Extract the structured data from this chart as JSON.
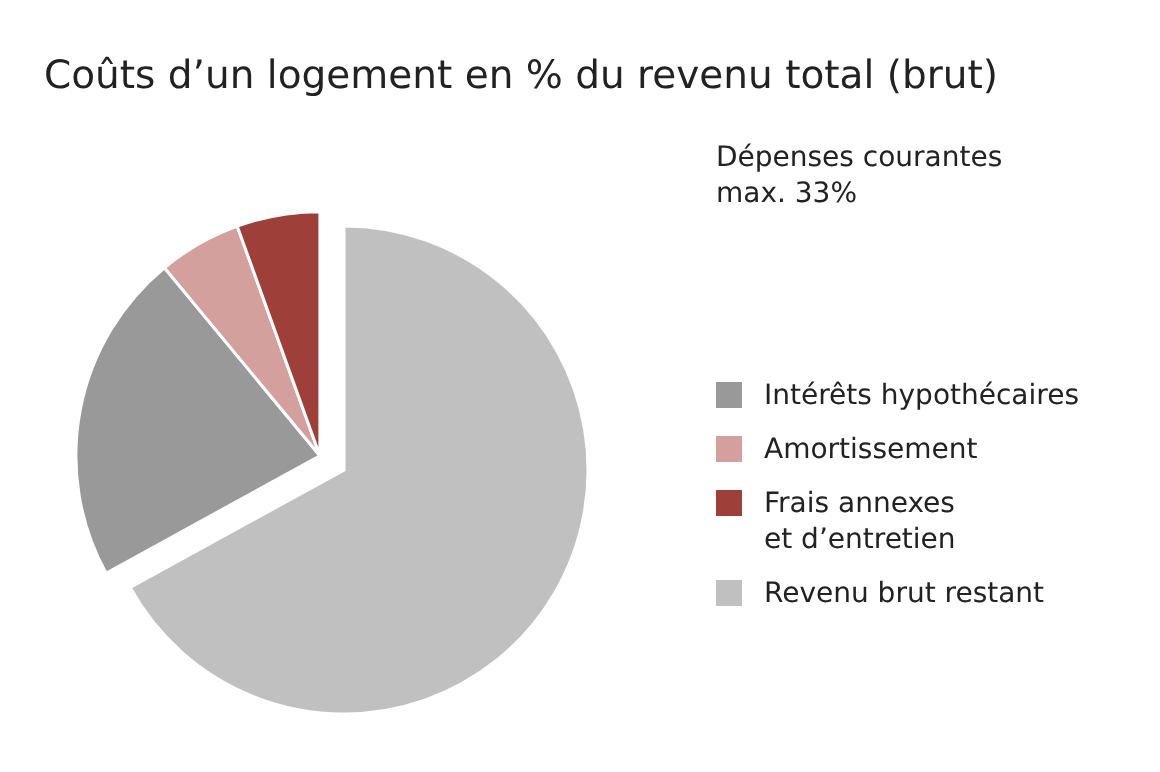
{
  "chart_data": {
    "type": "pie",
    "title": "Coûts d’un logement en % du revenu total (brut)",
    "legend_title": "Dépenses courantes\nmax. 33%",
    "categories": [
      "Intérêts hypothécaires",
      "Amortissement",
      "Frais annexes\net d’entretien",
      "Revenu brut restant"
    ],
    "values": [
      22,
      5.5,
      5.5,
      67
    ],
    "colors": [
      "#999999",
      "#d3a09d",
      "#9f3f39",
      "#c0c0c0"
    ],
    "legend": "right"
  }
}
